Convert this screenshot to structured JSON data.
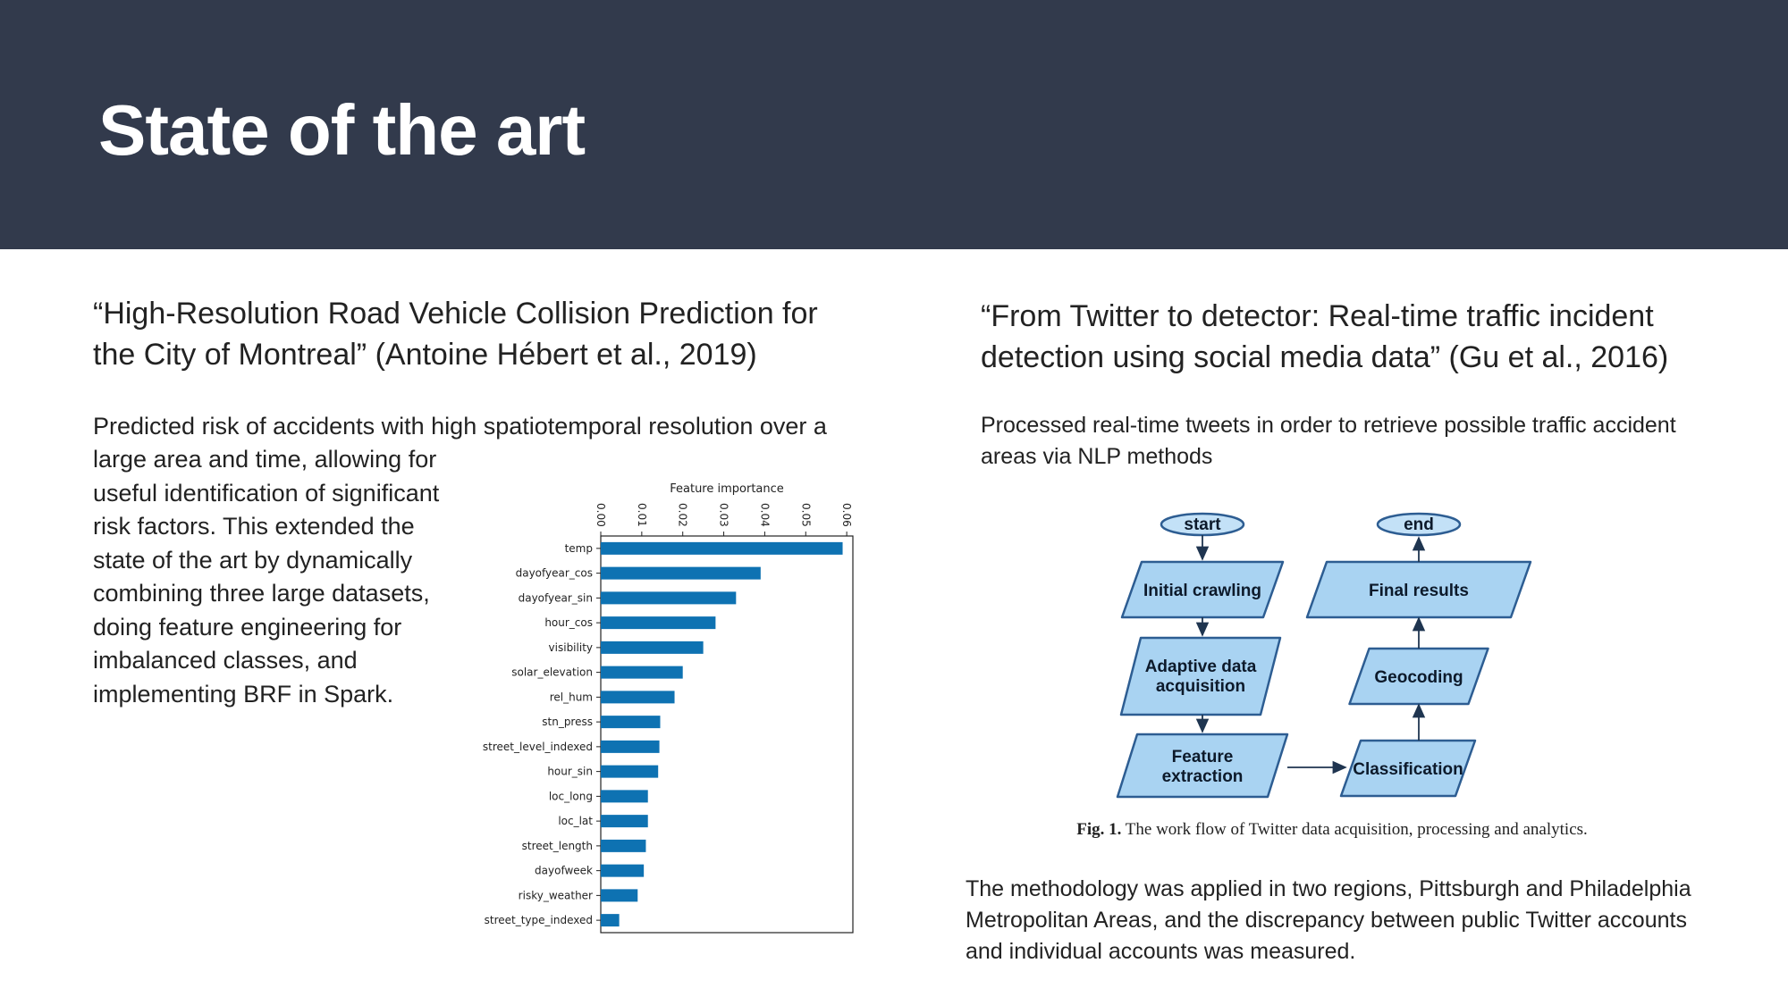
{
  "slide": {
    "title": "State of the art"
  },
  "left": {
    "reference": "“High-Resolution Road Vehicle Collision Prediction for the City of Montreal” (Antoine Hébert et al., 2019)",
    "paragraph_first_line": "Predicted risk of accidents with high spatiotemporal resolution over a",
    "paragraph_rest": "large area and time, allowing for useful identification of significant risk factors. This extended the state of the art by dynamically combining three large datasets, doing feature engineering for imbalanced classes, and implementing BRF in Spark."
  },
  "right": {
    "reference": "“From Twitter to detector: Real-time traffic incident detection using social media data” (Gu et al., 2016)",
    "description": "Processed real-time tweets in order to retrieve possible traffic accident areas via NLP methods",
    "figure_label": "Fig. 1.",
    "figure_caption": "The work flow of Twitter data acquisition, processing and analytics.",
    "closing": "The methodology was applied in two regions, Pittsburgh and Philadelphia Metropolitan Areas, and the discrepancy between public Twitter accounts and individual accounts was measured."
  },
  "flowchart": {
    "start": "start",
    "end": "end",
    "initial_crawling": "Initial crawling",
    "adaptive_1": "Adaptive data",
    "adaptive_2": "acquisition",
    "feature_1": "Feature",
    "feature_2": "extraction",
    "classification": "Classification",
    "geocoding": "Geocoding",
    "final_results": "Final results",
    "colors": {
      "fill": "#a9d3f2",
      "stroke": "#2d5d92",
      "terminal_fill": "#c3e1f7"
    }
  },
  "chart_data": {
    "type": "bar",
    "orientation": "horizontal",
    "title": "Feature importance",
    "categories": [
      "temp",
      "dayofyear_cos",
      "dayofyear_sin",
      "hour_cos",
      "visibility",
      "solar_elevation",
      "rel_hum",
      "stn_press",
      "street_level_indexed",
      "hour_sin",
      "loc_long",
      "loc_lat",
      "street_length",
      "dayofweek",
      "risky_weather",
      "street_type_indexed"
    ],
    "values": [
      0.059,
      0.039,
      0.033,
      0.028,
      0.025,
      0.02,
      0.018,
      0.0145,
      0.0143,
      0.014,
      0.0115,
      0.0115,
      0.011,
      0.0105,
      0.009,
      0.0045
    ],
    "ticks": [
      "0.00",
      "0.01",
      "0.02",
      "0.03",
      "0.04",
      "0.05",
      "0.06"
    ],
    "xlim": [
      0,
      0.0615
    ],
    "axis_position": "top",
    "bar_color": "#0e72b2"
  }
}
